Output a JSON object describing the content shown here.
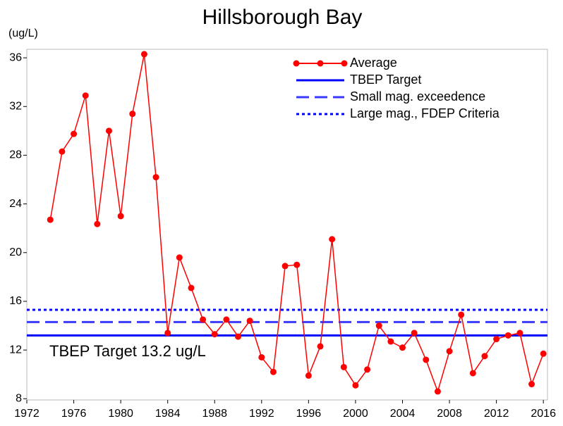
{
  "chart_data": {
    "type": "line",
    "title": "Hillsborough Bay",
    "y_unit": "(ug/L)",
    "annotation": "TBEP Target 13.2 ug/L",
    "x": [
      1974,
      1975,
      1976,
      1977,
      1978,
      1979,
      1980,
      1981,
      1982,
      1983,
      1984,
      1985,
      1986,
      1987,
      1988,
      1989,
      1990,
      1991,
      1992,
      1993,
      1994,
      1995,
      1996,
      1997,
      1998,
      1999,
      2000,
      2001,
      2002,
      2003,
      2004,
      2005,
      2006,
      2007,
      2008,
      2009,
      2010,
      2011,
      2012,
      2013,
      2014,
      2015,
      2016
    ],
    "series": [
      {
        "name": "Average",
        "color": "#ff0000",
        "values": [
          22.7,
          28.3,
          29.75,
          32.9,
          22.35,
          30.0,
          23.0,
          31.4,
          36.3,
          26.2,
          13.4,
          19.6,
          17.1,
          14.5,
          13.3,
          14.5,
          13.1,
          14.4,
          11.4,
          10.2,
          18.9,
          19.0,
          9.9,
          12.3,
          21.1,
          10.6,
          9.1,
          10.4,
          14.0,
          12.7,
          12.2,
          13.4,
          11.2,
          8.6,
          11.9,
          14.9,
          10.1,
          11.5,
          12.9,
          13.2,
          13.4,
          9.2,
          11.7
        ]
      }
    ],
    "reference_lines": [
      {
        "name": "TBEP Target",
        "value": 13.2,
        "color": "#0000ff",
        "dash": "solid"
      },
      {
        "name": "Small mag. exceedence",
        "value": 14.3,
        "color": "#3a3aff",
        "dash": "dashed"
      },
      {
        "name": "Large mag., FDEP Criteria",
        "value": 15.3,
        "color": "#0000ff",
        "dash": "dotted"
      }
    ],
    "xlim": [
      1972,
      2016.35
    ],
    "xticks": [
      1972,
      1976,
      1980,
      1984,
      1988,
      1992,
      1996,
      2000,
      2004,
      2008,
      2012,
      2016
    ],
    "ylim": [
      7.9,
      36.7
    ],
    "yticks": [
      8,
      12,
      16,
      20,
      24,
      28,
      32,
      36
    ],
    "legend": "upper right"
  }
}
